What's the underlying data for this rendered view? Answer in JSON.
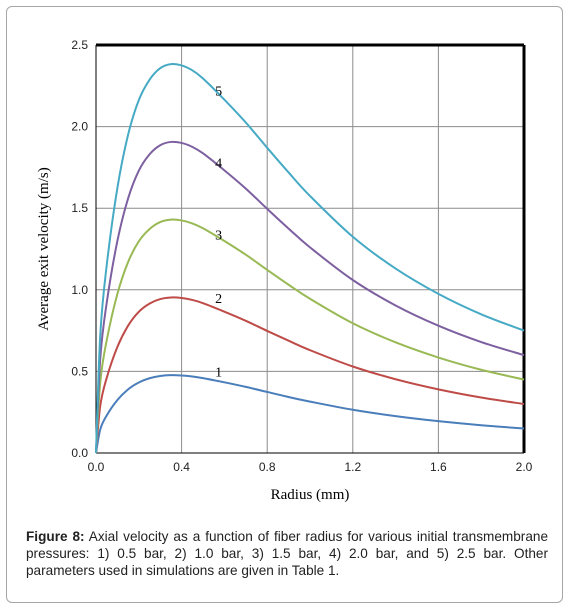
{
  "caption": {
    "label": "Figure 8:",
    "text": "Axial velocity as a function of fiber radius for various initial transmembrane pressures: 1) 0.5 bar, 2) 1.0 bar, 3) 1.5 bar, 4) 2.0 bar, and 5) 2.5 bar.  Other parameters used in simulations are given in Table 1."
  },
  "chart_data": {
    "type": "line",
    "xlabel": "Radius (mm)",
    "ylabel": "Average exit velocity (m/s)",
    "xlim": [
      0,
      2.0
    ],
    "ylim": [
      0,
      2.5
    ],
    "xticks": [
      0.0,
      0.4,
      0.8,
      1.2,
      1.6,
      2.0
    ],
    "xtick_labels": [
      "0.0",
      "0.4",
      "0.8",
      "1.2",
      "1.6",
      "2.0"
    ],
    "yticks": [
      0.0,
      0.5,
      1.0,
      1.5,
      2.0,
      2.5
    ],
    "ytick_labels": [
      "0.0",
      "0.5",
      "1.0",
      "1.5",
      "2.0",
      "2.5"
    ],
    "grid": true,
    "x": [
      0.0,
      0.02,
      0.05,
      0.1,
      0.15,
      0.2,
      0.25,
      0.3,
      0.35,
      0.4,
      0.45,
      0.5,
      0.6,
      0.7,
      0.8,
      0.9,
      1.0,
      1.2,
      1.4,
      1.6,
      1.8,
      2.0
    ],
    "series": [
      {
        "name": "1",
        "color": "#4a7ebb",
        "label_at": [
          0.58,
          0.5
        ],
        "values": [
          0.0,
          0.145,
          0.23,
          0.325,
          0.39,
          0.432,
          0.458,
          0.472,
          0.477,
          0.475,
          0.469,
          0.459,
          0.433,
          0.405,
          0.374,
          0.343,
          0.315,
          0.265,
          0.226,
          0.195,
          0.17,
          0.15
        ]
      },
      {
        "name": "2",
        "color": "#be4b48",
        "label_at": [
          0.58,
          0.95
        ],
        "values": [
          0.0,
          0.29,
          0.46,
          0.65,
          0.78,
          0.865,
          0.915,
          0.943,
          0.953,
          0.95,
          0.938,
          0.918,
          0.866,
          0.81,
          0.748,
          0.688,
          0.63,
          0.53,
          0.452,
          0.39,
          0.34,
          0.3
        ]
      },
      {
        "name": "3",
        "color": "#98b954",
        "label_at": [
          0.58,
          1.34
        ],
        "values": [
          0.0,
          0.435,
          0.69,
          0.975,
          1.17,
          1.297,
          1.372,
          1.415,
          1.43,
          1.425,
          1.407,
          1.377,
          1.299,
          1.215,
          1.122,
          1.031,
          0.945,
          0.795,
          0.678,
          0.585,
          0.51,
          0.45
        ]
      },
      {
        "name": "4",
        "color": "#7d60a0",
        "label_at": [
          0.58,
          1.78
        ],
        "values": [
          0.0,
          0.58,
          0.92,
          1.3,
          1.56,
          1.73,
          1.83,
          1.886,
          1.906,
          1.9,
          1.876,
          1.836,
          1.732,
          1.62,
          1.496,
          1.375,
          1.26,
          1.06,
          0.904,
          0.78,
          0.68,
          0.6
        ]
      },
      {
        "name": "5",
        "color": "#46aac5",
        "label_at": [
          0.58,
          2.22
        ],
        "values": [
          0.0,
          0.725,
          1.15,
          1.625,
          1.95,
          2.162,
          2.287,
          2.358,
          2.383,
          2.375,
          2.345,
          2.295,
          2.165,
          2.025,
          1.87,
          1.719,
          1.575,
          1.325,
          1.13,
          0.975,
          0.85,
          0.75
        ]
      }
    ]
  }
}
